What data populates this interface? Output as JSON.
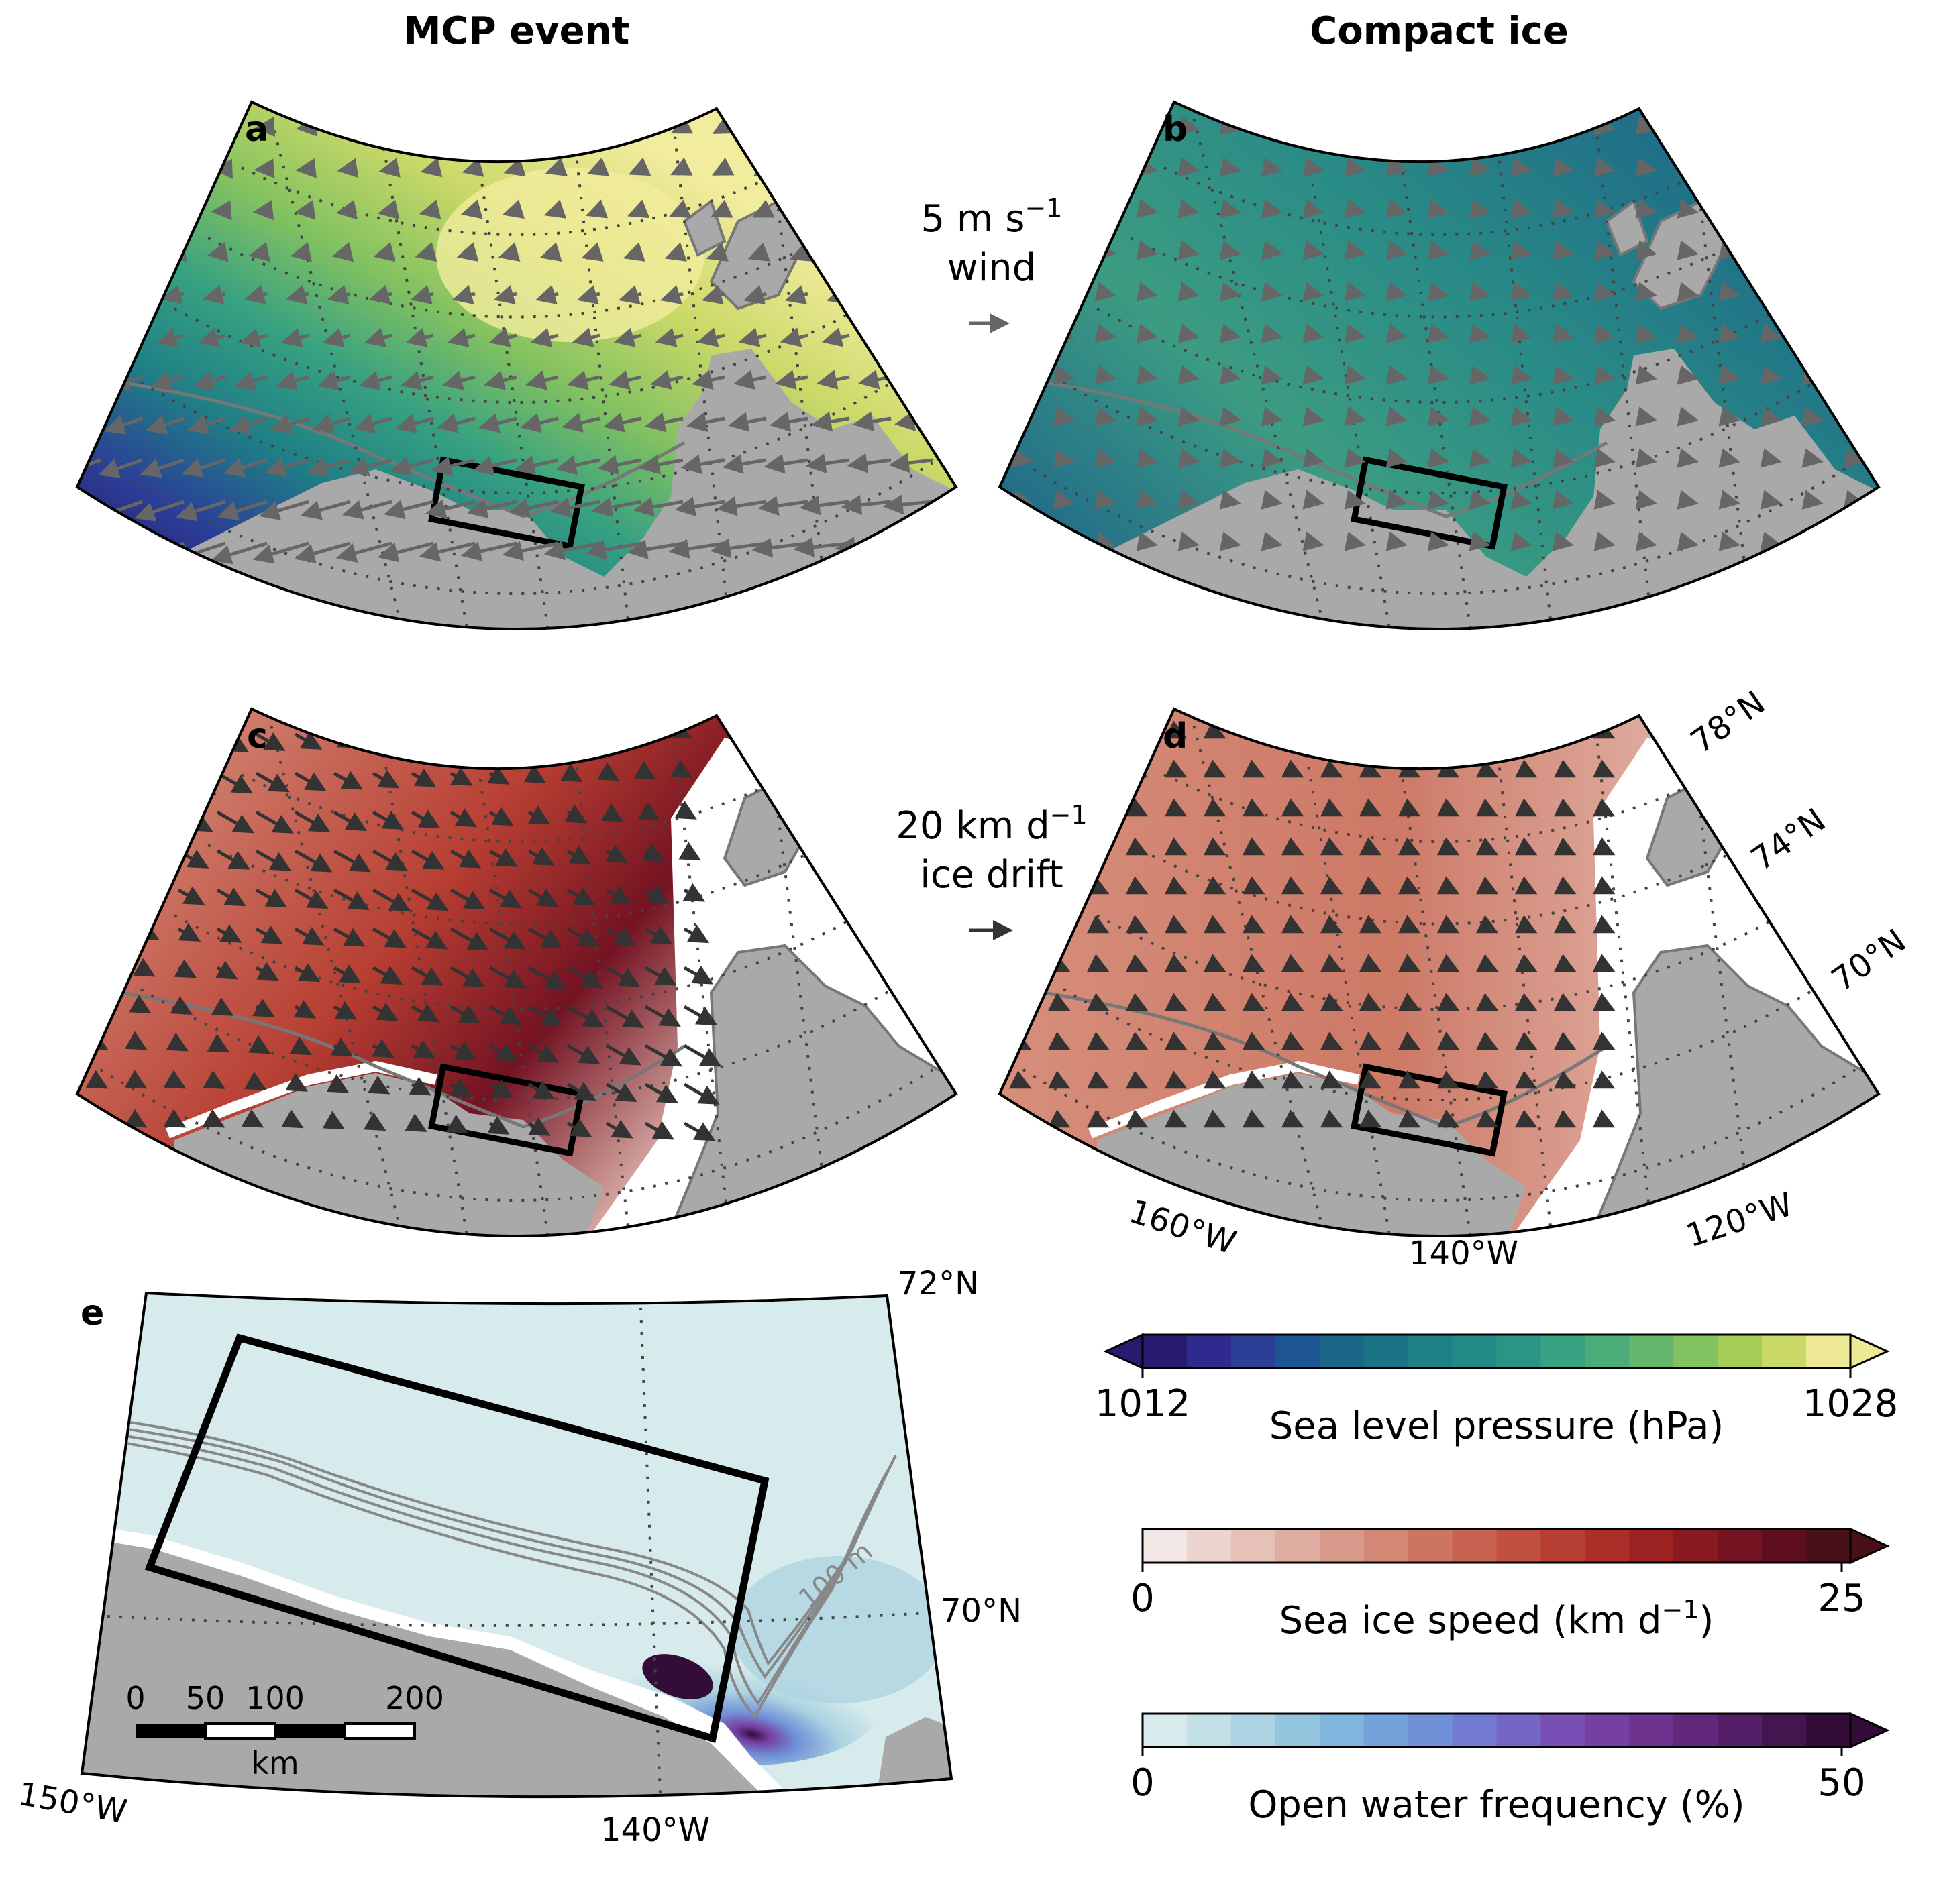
{
  "titles": {
    "left": "MCP event",
    "right": "Compact ice"
  },
  "panels": {
    "a": {
      "label": "a"
    },
    "b": {
      "label": "b"
    },
    "c": {
      "label": "c"
    },
    "d": {
      "label": "d"
    },
    "e": {
      "label": "e"
    }
  },
  "wind_key": {
    "line1": "5 m s",
    "line1_sup": "−1",
    "line2": "wind",
    "speed_m_s": 5
  },
  "drift_key": {
    "line1": "20 km d",
    "line1_sup": "−1",
    "line2": "ice drift",
    "speed_km_d": 20
  },
  "lat_labels": {
    "n78": "78°N",
    "n74": "74°N",
    "n70": "70°N"
  },
  "lon_labels": {
    "w160": "160°W",
    "w140": "140°W",
    "w120": "120°W"
  },
  "panel_e": {
    "lat_top": "72°N",
    "lat_mid": "70°N",
    "lon_left": "150°W",
    "lon_mid": "140°W",
    "isobath": "100 m",
    "scalebar": {
      "t0": "0",
      "t1": "50",
      "t2": "100",
      "t3": "200",
      "unit": "km"
    }
  },
  "colorbars": [
    {
      "label": "Sea level pressure (hPa)",
      "min": "1012",
      "max": "1028",
      "extend": "both",
      "colors": [
        "#2a1a6e",
        "#2f2a8e",
        "#2b3f97",
        "#1d5590",
        "#1b6588",
        "#1d7386",
        "#1f7f86",
        "#228a86",
        "#2a9584",
        "#37a181",
        "#4cac79",
        "#65b76e",
        "#83c260",
        "#a6cd56",
        "#cbd968",
        "#eee994"
      ]
    },
    {
      "label": "Sea ice speed (km d",
      "label_sup": "−1",
      "label_end": ")",
      "min": "0",
      "max": "25",
      "extend": "max",
      "colors": [
        "#f3e7e5",
        "#ecd4cf",
        "#e6c1b8",
        "#dfada1",
        "#d9998a",
        "#d38775",
        "#cd7462",
        "#c76250",
        "#c0503f",
        "#b73e32",
        "#ab2e28",
        "#9c2222",
        "#891a22",
        "#741322",
        "#5e0e1f",
        "#481019"
      ]
    },
    {
      "label": "Open water frequency (%)",
      "min": "0",
      "max": "50",
      "extend": "max",
      "colors": [
        "#d8ebec",
        "#c2e0e6",
        "#abd3e1",
        "#94c5df",
        "#80b5dd",
        "#74a3db",
        "#7090d8",
        "#727ad1",
        "#7566c5",
        "#774fb5",
        "#7640a3",
        "#6e338f",
        "#62287c",
        "#541f66",
        "#44164f",
        "#330d38"
      ]
    }
  ]
}
